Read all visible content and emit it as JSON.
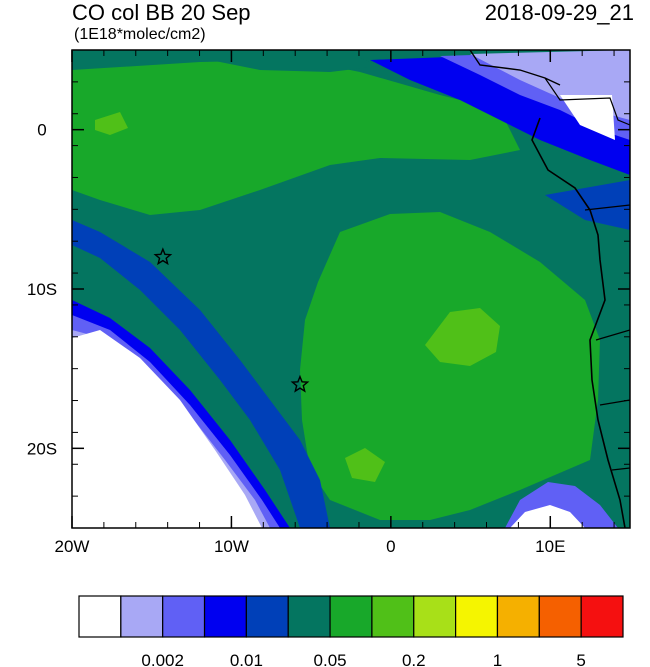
{
  "header": {
    "title": "CO col BB 20 Sep",
    "units": "(1E18*molec/cm2)",
    "valid_time": "2018-09-29_21"
  },
  "axes": {
    "x_ticks": [
      {
        "lon": -20,
        "label": "20W"
      },
      {
        "lon": -10,
        "label": "10W"
      },
      {
        "lon": 0,
        "label": "0"
      },
      {
        "lon": 10,
        "label": "10E"
      }
    ],
    "y_ticks": [
      {
        "lat": 0,
        "label": "0"
      },
      {
        "lat": -10,
        "label": "10S"
      },
      {
        "lat": -20,
        "label": "20S"
      }
    ],
    "lon_range": [
      -20,
      15
    ],
    "lat_range": [
      -25,
      5
    ]
  },
  "colorbar": {
    "colors": [
      "#ffffff",
      "#a8a8f5",
      "#6060f5",
      "#0000f0",
      "#0040b8",
      "#047560",
      "#18a82a",
      "#50c018",
      "#a8e018",
      "#f5f500",
      "#f5b000",
      "#f56000",
      "#f51010"
    ],
    "labels": [
      {
        "after_box": 2,
        "text": "0.002"
      },
      {
        "after_box": 4,
        "text": "0.01"
      },
      {
        "after_box": 6,
        "text": "0.05"
      },
      {
        "after_box": 8,
        "text": "0.2"
      },
      {
        "after_box": 10,
        "text": "1"
      },
      {
        "after_box": 12,
        "text": "5"
      }
    ]
  },
  "markers": [
    {
      "name": "star-marker",
      "lon": -14.3,
      "lat": -8.0
    },
    {
      "name": "star-marker",
      "lon": -5.7,
      "lat": -16.0
    }
  ]
}
